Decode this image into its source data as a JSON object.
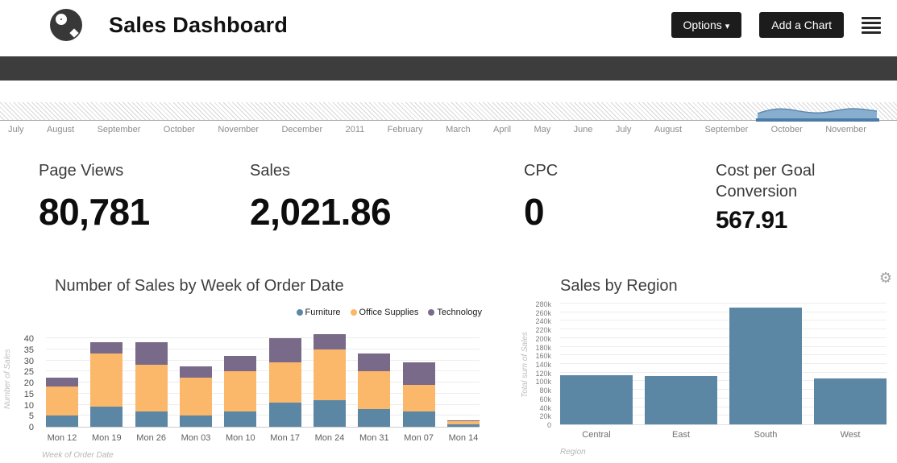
{
  "header": {
    "title": "Sales Dashboard",
    "options_label": "Options",
    "add_chart_label": "Add a Chart"
  },
  "icons": {
    "caret_down": "▾",
    "gear": "⚙"
  },
  "timeline": {
    "months": [
      "July",
      "August",
      "September",
      "October",
      "November",
      "December",
      "2011",
      "February",
      "March",
      "April",
      "May",
      "June",
      "July",
      "August",
      "September",
      "October",
      "November"
    ]
  },
  "kpis": [
    {
      "label": "Page Views",
      "value": "80,781"
    },
    {
      "label": "Sales",
      "value": "2,021.86"
    },
    {
      "label": "CPC",
      "value": "0"
    },
    {
      "label": "Cost per Goal Conversion",
      "value": "567.91"
    }
  ],
  "chart_data": [
    {
      "type": "bar",
      "stacked": true,
      "title": "Number of Sales by Week of Order Date",
      "categories": [
        "Mon 12",
        "Mon 19",
        "Mon 26",
        "Mon 03",
        "Mon 10",
        "Mon 17",
        "Mon 24",
        "Mon 31",
        "Mon 07",
        "Mon 14"
      ],
      "series": [
        {
          "name": "Furniture",
          "color": "#5b87a5",
          "values": [
            5,
            9,
            7,
            5,
            7,
            11,
            12,
            8,
            7,
            1
          ]
        },
        {
          "name": "Office Supplies",
          "color": "#fbb76a",
          "values": [
            13,
            24,
            21,
            17,
            18,
            18,
            23,
            17,
            12,
            1.5
          ]
        },
        {
          "name": "Technology",
          "color": "#7a6a8a",
          "values": [
            4,
            5,
            10,
            5,
            7,
            11,
            7,
            8,
            10,
            0.5
          ]
        }
      ],
      "xlabel": "Week of Order Date",
      "ylabel": "Number of Sales",
      "ylim": [
        0,
        40
      ],
      "yticks": [
        0,
        5,
        10,
        15,
        20,
        25,
        30,
        35,
        40
      ],
      "legend_position": "top-right",
      "grid": true
    },
    {
      "type": "bar",
      "title": "Sales by Region",
      "categories": [
        "Central",
        "East",
        "South",
        "West"
      ],
      "values": [
        114000,
        112000,
        270000,
        106000
      ],
      "bar_color": "#5b87a5",
      "xlabel": "Region",
      "ylabel": "Total sum of Sales",
      "ylim": [
        0,
        280000
      ],
      "yticks": [
        0,
        20000,
        40000,
        60000,
        80000,
        100000,
        120000,
        140000,
        160000,
        180000,
        200000,
        220000,
        240000,
        260000,
        280000
      ],
      "ytick_labels": [
        "0",
        "20k",
        "40k",
        "60k",
        "80k",
        "100k",
        "120k",
        "140k",
        "160k",
        "180k",
        "200k",
        "220k",
        "240k",
        "260k",
        "280k"
      ],
      "grid": true
    }
  ]
}
